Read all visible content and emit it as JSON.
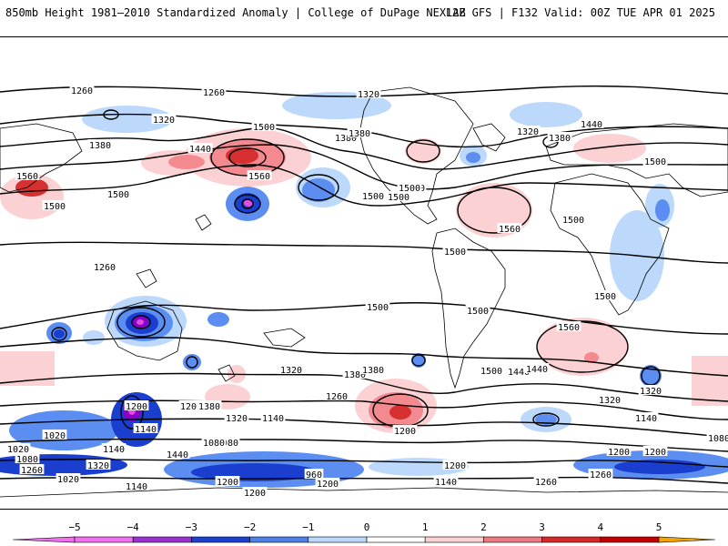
{
  "header": {
    "title": "850mb Height 1981–2010 Standardized Anomaly | College of DuPage NEXLAB",
    "run_info": "12Z GFS | F132 Valid: 00Z TUE APR 01 2025"
  },
  "map": {
    "contour_labels": [
      "1260",
      "1260",
      "1320",
      "1380",
      "1320",
      "1380",
      "1440",
      "1500",
      "1560",
      "1500",
      "1500",
      "1500",
      "1560",
      "1320",
      "1380",
      "1440",
      "1500",
      "1500",
      "1500",
      "1560",
      "1380",
      "1440",
      "1500",
      "1500",
      "1500",
      "1500",
      "1500",
      "1380",
      "1440",
      "1320",
      "1260",
      "1200",
      "1140",
      "1080",
      "1020",
      "960",
      "1200",
      "1260",
      "1140",
      "1080",
      "1020",
      "1200",
      "1320",
      "1380",
      "1440",
      "1500",
      "1560",
      "1320",
      "1260",
      "1200",
      "1140",
      "1080",
      "1020",
      "1200",
      "1320",
      "1260",
      "1200",
      "1140",
      "1260",
      "1200",
      "1140",
      "1440",
      "1320",
      "1380",
      "1200",
      "1140",
      "1260",
      "1200",
      "1080"
    ],
    "colors": {
      "neg5": "#e04de0",
      "neg4": "#8b00c9",
      "neg3": "#1a3fcf",
      "neg2": "#5b8ef0",
      "neg1": "#bcd8fb",
      "pos1": "#fbd1d4",
      "pos2": "#f28a8f",
      "pos3": "#d63030",
      "pos4": "#b30000",
      "pos5": "#f5a300"
    }
  },
  "colorbar": {
    "ticks": [
      "−5",
      "−4",
      "−3",
      "−2",
      "−1",
      "0",
      "1",
      "2",
      "3",
      "4",
      "5"
    ],
    "colors": [
      "#f070f0",
      "#9b30d0",
      "#1b3fcf",
      "#4f7fe8",
      "#bcd8fb",
      "#ffffff",
      "#fbd1d4",
      "#ee7b82",
      "#d62828",
      "#c20000",
      "#f5a300"
    ]
  }
}
